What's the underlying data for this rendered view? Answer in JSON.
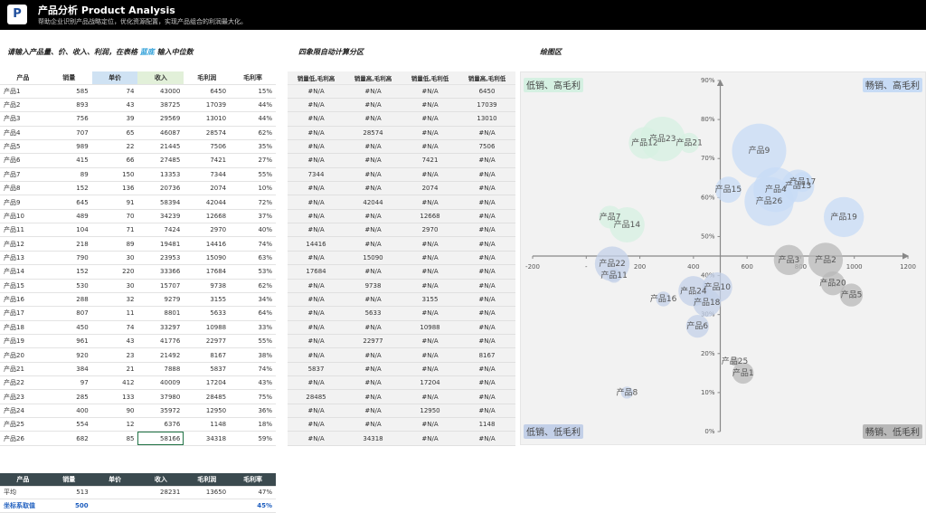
{
  "header": {
    "title": "产品分析 Product Analysis",
    "subtitle": "帮助企业识别产品战略定位，优化资源配置，实现产品组合的利润最大化。"
  },
  "sections": {
    "input": [
      "请输入产品量、价、收入、利润，在表格",
      "蓝底",
      "输入中位数"
    ],
    "quadrant": "四象限自动计算分区",
    "plot": "绘图区"
  },
  "table": {
    "headers": [
      "产品",
      "销量",
      "单价",
      "收入",
      "毛利润",
      "毛利率"
    ],
    "rows": [
      [
        "产品1",
        "585",
        "74",
        "43000",
        "6450",
        "15%"
      ],
      [
        "产品2",
        "893",
        "43",
        "38725",
        "17039",
        "44%"
      ],
      [
        "产品3",
        "756",
        "39",
        "29569",
        "13010",
        "44%"
      ],
      [
        "产品4",
        "707",
        "65",
        "46087",
        "28574",
        "62%"
      ],
      [
        "产品5",
        "989",
        "22",
        "21445",
        "7506",
        "35%"
      ],
      [
        "产品6",
        "415",
        "66",
        "27485",
        "7421",
        "27%"
      ],
      [
        "产品7",
        "89",
        "150",
        "13353",
        "7344",
        "55%"
      ],
      [
        "产品8",
        "152",
        "136",
        "20736",
        "2074",
        "10%"
      ],
      [
        "产品9",
        "645",
        "91",
        "58394",
        "42044",
        "72%"
      ],
      [
        "产品10",
        "489",
        "70",
        "34239",
        "12668",
        "37%"
      ],
      [
        "产品11",
        "104",
        "71",
        "7424",
        "2970",
        "40%"
      ],
      [
        "产品12",
        "218",
        "89",
        "19481",
        "14416",
        "74%"
      ],
      [
        "产品13",
        "790",
        "30",
        "23953",
        "15090",
        "63%"
      ],
      [
        "产品14",
        "152",
        "220",
        "33366",
        "17684",
        "53%"
      ],
      [
        "产品15",
        "530",
        "30",
        "15707",
        "9738",
        "62%"
      ],
      [
        "产品16",
        "288",
        "32",
        "9279",
        "3155",
        "34%"
      ],
      [
        "产品17",
        "807",
        "11",
        "8801",
        "5633",
        "64%"
      ],
      [
        "产品18",
        "450",
        "74",
        "33297",
        "10988",
        "33%"
      ],
      [
        "产品19",
        "961",
        "43",
        "41776",
        "22977",
        "55%"
      ],
      [
        "产品20",
        "920",
        "23",
        "21492",
        "8167",
        "38%"
      ],
      [
        "产品21",
        "384",
        "21",
        "7888",
        "5837",
        "74%"
      ],
      [
        "产品22",
        "97",
        "412",
        "40009",
        "17204",
        "43%"
      ],
      [
        "产品23",
        "285",
        "133",
        "37980",
        "28485",
        "75%"
      ],
      [
        "产品24",
        "400",
        "90",
        "35972",
        "12950",
        "36%"
      ],
      [
        "产品25",
        "554",
        "12",
        "6376",
        "1148",
        "18%"
      ],
      [
        "产品26",
        "682",
        "85",
        "58166",
        "34318",
        "59%"
      ]
    ]
  },
  "quadrant_table": {
    "headers": [
      "销量低,毛利高",
      "销量高,毛利高",
      "销量低,毛利低",
      "销量高,毛利低"
    ],
    "rows": [
      [
        "#N/A",
        "#N/A",
        "#N/A",
        "6450"
      ],
      [
        "#N/A",
        "#N/A",
        "#N/A",
        "17039"
      ],
      [
        "#N/A",
        "#N/A",
        "#N/A",
        "13010"
      ],
      [
        "#N/A",
        "28574",
        "#N/A",
        "#N/A"
      ],
      [
        "#N/A",
        "#N/A",
        "#N/A",
        "7506"
      ],
      [
        "#N/A",
        "#N/A",
        "7421",
        "#N/A"
      ],
      [
        "7344",
        "#N/A",
        "#N/A",
        "#N/A"
      ],
      [
        "#N/A",
        "#N/A",
        "2074",
        "#N/A"
      ],
      [
        "#N/A",
        "42044",
        "#N/A",
        "#N/A"
      ],
      [
        "#N/A",
        "#N/A",
        "12668",
        "#N/A"
      ],
      [
        "#N/A",
        "#N/A",
        "2970",
        "#N/A"
      ],
      [
        "14416",
        "#N/A",
        "#N/A",
        "#N/A"
      ],
      [
        "#N/A",
        "15090",
        "#N/A",
        "#N/A"
      ],
      [
        "17684",
        "#N/A",
        "#N/A",
        "#N/A"
      ],
      [
        "#N/A",
        "9738",
        "#N/A",
        "#N/A"
      ],
      [
        "#N/A",
        "#N/A",
        "3155",
        "#N/A"
      ],
      [
        "#N/A",
        "5633",
        "#N/A",
        "#N/A"
      ],
      [
        "#N/A",
        "#N/A",
        "10988",
        "#N/A"
      ],
      [
        "#N/A",
        "22977",
        "#N/A",
        "#N/A"
      ],
      [
        "#N/A",
        "#N/A",
        "#N/A",
        "8167"
      ],
      [
        "5837",
        "#N/A",
        "#N/A",
        "#N/A"
      ],
      [
        "#N/A",
        "#N/A",
        "17204",
        "#N/A"
      ],
      [
        "28485",
        "#N/A",
        "#N/A",
        "#N/A"
      ],
      [
        "#N/A",
        "#N/A",
        "12950",
        "#N/A"
      ],
      [
        "#N/A",
        "#N/A",
        "#N/A",
        "1148"
      ],
      [
        "#N/A",
        "34318",
        "#N/A",
        "#N/A"
      ]
    ]
  },
  "summary_table": {
    "headers": [
      "产品",
      "销量",
      "单价",
      "收入",
      "毛利润",
      "毛利率"
    ],
    "rows": [
      [
        "平均",
        "513",
        null,
        "28231",
        "13650",
        "47%"
      ],
      [
        "坐标系取值",
        "500",
        null,
        null,
        null,
        "45%"
      ]
    ]
  },
  "chart_data": {
    "type": "bubble",
    "xlim": [
      -200,
      1200
    ],
    "xticks": [
      -200,
      {
        "value": 0,
        "label": "-"
      },
      200,
      400,
      600,
      800,
      1000,
      1200
    ],
    "ylim": [
      0,
      90
    ],
    "yticks": [
      {
        "value": 0,
        "label": "0%"
      },
      {
        "value": 10,
        "label": "10%"
      },
      {
        "value": 20,
        "label": "20%"
      },
      {
        "value": 30,
        "label": "30%"
      },
      {
        "value": 40,
        "label": "40%"
      },
      {
        "value": 50,
        "label": "50%"
      },
      {
        "value": 60,
        "label": "60%"
      },
      {
        "value": 70,
        "label": "70%"
      },
      {
        "value": 80,
        "label": "80%"
      },
      {
        "value": 90,
        "label": "90%"
      }
    ],
    "x_cross": 500,
    "y_cross": 45,
    "series": [
      {
        "name": "低销、高毛利",
        "corner": "top-left",
        "color": "#d5f0e2",
        "labels": [
          "产品7",
          "产品12",
          "产品14",
          "产品21",
          "产品23"
        ],
        "x": [
          89,
          218,
          152,
          384,
          285
        ],
        "values": [
          55,
          74,
          53,
          74,
          75
        ],
        "sizes": [
          7344,
          14416,
          17684,
          5837,
          28485
        ]
      },
      {
        "name": "畅销、高毛利",
        "corner": "top-right",
        "color": "#c7dbf5",
        "labels": [
          "产品4",
          "产品9",
          "产品13",
          "产品15",
          "产品17",
          "产品19",
          "产品26"
        ],
        "x": [
          707,
          645,
          790,
          530,
          807,
          961,
          682
        ],
        "values": [
          62,
          72,
          63,
          62,
          64,
          55,
          59
        ],
        "sizes": [
          28574,
          42044,
          15090,
          9738,
          5633,
          22977,
          34318
        ]
      },
      {
        "name": "低销、低毛利",
        "corner": "bottom-left",
        "color": "#c3d0e8",
        "labels": [
          "产品6",
          "产品8",
          "产品10",
          "产品11",
          "产品16",
          "产品18",
          "产品22",
          "产品24"
        ],
        "x": [
          415,
          152,
          489,
          104,
          288,
          450,
          97,
          400
        ],
        "values": [
          27,
          10,
          37,
          40,
          34,
          33,
          43,
          36
        ],
        "sizes": [
          7421,
          2074,
          12668,
          2970,
          3155,
          10988,
          17204,
          12950
        ]
      },
      {
        "name": "畅销、低毛利",
        "corner": "bottom-right",
        "color": "#b8b8b8",
        "labels": [
          "产品1",
          "产品2",
          "产品3",
          "产品5",
          "产品20",
          "产品25"
        ],
        "x": [
          585,
          893,
          756,
          989,
          920,
          554
        ],
        "values": [
          15,
          44,
          44,
          35,
          38,
          18
        ],
        "sizes": [
          6450,
          17039,
          13010,
          7506,
          8167,
          1148
        ]
      }
    ]
  }
}
